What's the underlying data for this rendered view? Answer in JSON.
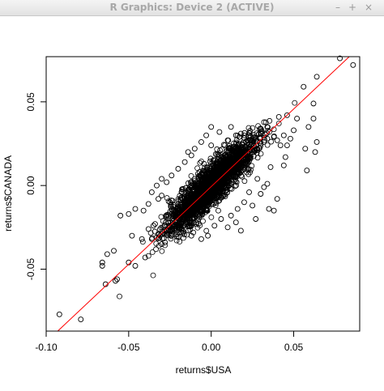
{
  "window": {
    "title": "R Graphics: Device 2 (ACTIVE)",
    "controls": {
      "minimize": "–",
      "maximize": "+",
      "close": "×"
    }
  },
  "chart_data": {
    "type": "scatter",
    "xlabel": "returns$USA",
    "ylabel": "returns$CANADA",
    "xlim": [
      -0.1,
      0.09
    ],
    "ylim": [
      -0.087,
      0.077
    ],
    "x_ticks": [
      -0.1,
      -0.05,
      0.0,
      0.05
    ],
    "x_tick_labels": [
      "-0.10",
      "-0.05",
      "0.00",
      "0.05"
    ],
    "y_ticks": [
      -0.05,
      0.0,
      0.05
    ],
    "y_tick_labels": [
      "-0.05",
      "0.00",
      "0.05"
    ],
    "fit_line": {
      "color": "#ff0000",
      "points": [
        [
          -0.093,
          -0.087
        ],
        [
          0.088,
          0.081
        ]
      ]
    },
    "series": [
      {
        "marker": "open-circle",
        "points": [
          [
            -0.092,
            -0.077
          ],
          [
            -0.079,
            -0.08
          ],
          [
            -0.064,
            -0.059
          ],
          [
            -0.066,
            -0.048
          ],
          [
            -0.066,
            -0.046
          ],
          [
            -0.058,
            -0.057
          ],
          [
            -0.057,
            -0.056
          ],
          [
            -0.063,
            -0.041
          ],
          [
            -0.059,
            -0.039
          ],
          [
            -0.05,
            -0.046
          ],
          [
            -0.046,
            -0.048
          ],
          [
            -0.04,
            -0.043
          ],
          [
            -0.036,
            -0.032
          ],
          [
            -0.033,
            -0.031
          ],
          [
            -0.03,
            -0.035
          ],
          [
            -0.055,
            -0.018
          ],
          [
            -0.05,
            -0.017
          ],
          [
            -0.046,
            -0.014
          ],
          [
            -0.048,
            -0.03
          ],
          [
            -0.042,
            -0.032
          ],
          [
            -0.038,
            -0.026
          ],
          [
            -0.035,
            -0.024
          ],
          [
            -0.034,
            -0.023
          ],
          [
            -0.031,
            -0.03
          ],
          [
            -0.028,
            -0.034
          ],
          [
            -0.041,
            -0.015
          ],
          [
            -0.038,
            -0.011
          ],
          [
            -0.032,
            -0.008
          ],
          [
            -0.03,
            -0.006
          ],
          [
            -0.025,
            -0.01
          ],
          [
            -0.022,
            -0.022
          ],
          [
            -0.02,
            -0.025
          ],
          [
            -0.018,
            -0.028
          ],
          [
            -0.012,
            -0.03
          ],
          [
            -0.006,
            -0.032
          ],
          [
            -0.027,
            0.002
          ],
          [
            -0.024,
            0.006
          ],
          [
            -0.02,
            0.01
          ],
          [
            -0.016,
            0.014
          ],
          [
            -0.012,
            0.018
          ],
          [
            -0.01,
            0.022
          ],
          [
            -0.006,
            0.026
          ],
          [
            -0.003,
            0.03
          ],
          [
            0.0,
            0.024
          ],
          [
            0.005,
            0.032
          ],
          [
            0.01,
            0.027
          ],
          [
            0.012,
            0.035
          ],
          [
            0.0,
            0.035
          ],
          [
            -0.014,
            0.02
          ],
          [
            0.015,
            0.03
          ],
          [
            0.017,
            0.029
          ],
          [
            0.018,
            0.031
          ],
          [
            0.02,
            0.03
          ],
          [
            0.022,
            0.027
          ],
          [
            0.024,
            0.024
          ],
          [
            0.026,
            0.02
          ],
          [
            0.028,
            0.022
          ],
          [
            0.03,
            0.025
          ],
          [
            0.032,
            0.026
          ],
          [
            0.034,
            0.028
          ],
          [
            0.03,
            0.031
          ],
          [
            0.034,
            0.035
          ],
          [
            0.038,
            0.029
          ],
          [
            0.04,
            0.027
          ],
          [
            0.042,
            0.024
          ],
          [
            0.044,
            0.03
          ],
          [
            0.045,
            0.017
          ],
          [
            0.046,
            0.024
          ],
          [
            0.048,
            0.028
          ],
          [
            0.05,
            0.033
          ],
          [
            0.052,
            0.04
          ],
          [
            0.041,
            0.041
          ],
          [
            0.046,
            0.042
          ],
          [
            0.056,
            0.059
          ],
          [
            0.062,
            0.049
          ],
          [
            0.059,
            0.035
          ],
          [
            0.057,
            0.022
          ],
          [
            0.064,
            0.026
          ],
          [
            0.063,
            0.02
          ],
          [
            0.058,
            0.009
          ],
          [
            0.062,
            0.04
          ],
          [
            0.044,
            0.012
          ],
          [
            0.036,
            0.011
          ],
          [
            0.034,
            0.001
          ],
          [
            0.032,
            -0.001
          ],
          [
            0.035,
            -0.014
          ],
          [
            0.038,
            -0.015
          ],
          [
            0.04,
            -0.008
          ],
          [
            0.03,
            -0.005
          ],
          [
            0.028,
            0.004
          ],
          [
            0.023,
            -0.004
          ],
          [
            0.02,
            -0.01
          ],
          [
            0.016,
            -0.014
          ],
          [
            0.012,
            -0.018
          ],
          [
            0.006,
            -0.02
          ],
          [
            0.002,
            -0.024
          ],
          [
            -0.002,
            -0.03
          ],
          [
            0.01,
            -0.025
          ],
          [
            0.015,
            -0.022
          ],
          [
            0.018,
            -0.027
          ],
          [
            0.025,
            -0.012
          ],
          [
            0.027,
            -0.02
          ],
          [
            -0.03,
            0.004
          ],
          [
            -0.033,
            0.0
          ],
          [
            -0.036,
            -0.004
          ],
          [
            0.078,
            0.076
          ],
          [
            0.086,
            0.072
          ],
          [
            0.064,
            0.065
          ],
          [
            -0.025,
            -0.027
          ],
          [
            0.008,
            0.012
          ],
          [
            0.004,
            0.008
          ],
          [
            0.006,
            0.004
          ],
          [
            0.001,
            0.002
          ],
          [
            -0.004,
            -0.002
          ],
          [
            -0.008,
            -0.006
          ],
          [
            0.012,
            0.008
          ],
          [
            0.014,
            0.014
          ],
          [
            0.018,
            0.016
          ],
          [
            0.022,
            0.02
          ],
          [
            -0.012,
            -0.01
          ],
          [
            -0.016,
            -0.014
          ],
          [
            -0.02,
            -0.016
          ],
          [
            0.0,
            -0.004
          ],
          [
            0.003,
            -0.008
          ],
          [
            -0.006,
            0.004
          ],
          [
            0.016,
            0.022
          ],
          [
            0.02,
            0.012
          ],
          [
            -0.01,
            0.004
          ],
          [
            -0.018,
            -0.004
          ],
          [
            0.01,
            0.018
          ]
        ]
      }
    ]
  }
}
